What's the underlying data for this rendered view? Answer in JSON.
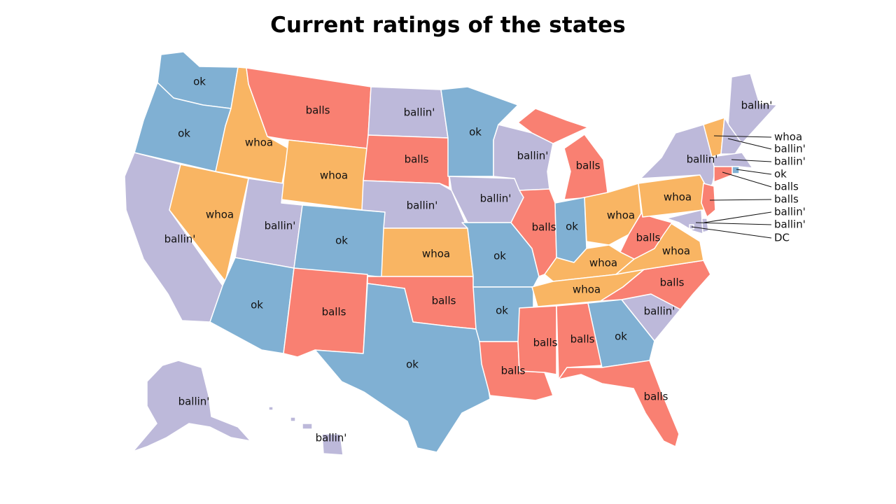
{
  "title": "Current ratings of the states",
  "colors": {
    "ok": "#80B0D3",
    "whoa": "#F9B563",
    "ballin'": "#BDB9DA",
    "balls": "#F98072",
    "DC": "#BDB9DA"
  },
  "states": [
    {
      "id": "WA",
      "rating": "ok"
    },
    {
      "id": "OR",
      "rating": "ok"
    },
    {
      "id": "CA",
      "rating": "ballin'"
    },
    {
      "id": "ID",
      "rating": "whoa"
    },
    {
      "id": "NV",
      "rating": "whoa"
    },
    {
      "id": "MT",
      "rating": "balls"
    },
    {
      "id": "WY",
      "rating": "whoa"
    },
    {
      "id": "UT",
      "rating": "ballin'"
    },
    {
      "id": "CO",
      "rating": "ok"
    },
    {
      "id": "AZ",
      "rating": "ok"
    },
    {
      "id": "NM",
      "rating": "balls"
    },
    {
      "id": "ND",
      "rating": "ballin'"
    },
    {
      "id": "SD",
      "rating": "balls"
    },
    {
      "id": "NE",
      "rating": "ballin'"
    },
    {
      "id": "KS",
      "rating": "whoa"
    },
    {
      "id": "OK",
      "rating": "balls"
    },
    {
      "id": "TX",
      "rating": "ok"
    },
    {
      "id": "MN",
      "rating": "ok"
    },
    {
      "id": "IA",
      "rating": "ballin'"
    },
    {
      "id": "MO",
      "rating": "ok"
    },
    {
      "id": "AR",
      "rating": "ok"
    },
    {
      "id": "LA",
      "rating": "balls"
    },
    {
      "id": "WI",
      "rating": "ballin'"
    },
    {
      "id": "IL",
      "rating": "balls"
    },
    {
      "id": "MI",
      "rating": "balls"
    },
    {
      "id": "IN",
      "rating": "ok"
    },
    {
      "id": "OH",
      "rating": "whoa"
    },
    {
      "id": "KY",
      "rating": "whoa"
    },
    {
      "id": "TN",
      "rating": "whoa"
    },
    {
      "id": "MS",
      "rating": "balls"
    },
    {
      "id": "AL",
      "rating": "balls"
    },
    {
      "id": "GA",
      "rating": "ok"
    },
    {
      "id": "FL",
      "rating": "balls"
    },
    {
      "id": "SC",
      "rating": "ballin'"
    },
    {
      "id": "NC",
      "rating": "balls"
    },
    {
      "id": "VA",
      "rating": "whoa"
    },
    {
      "id": "WV",
      "rating": "balls"
    },
    {
      "id": "PA",
      "rating": "whoa"
    },
    {
      "id": "NY",
      "rating": "ballin'"
    },
    {
      "id": "ME",
      "rating": "ballin'"
    },
    {
      "id": "VT",
      "rating": "whoa"
    },
    {
      "id": "NH",
      "rating": "ballin'"
    },
    {
      "id": "MA",
      "rating": "ballin'"
    },
    {
      "id": "RI",
      "rating": "ok"
    },
    {
      "id": "CT",
      "rating": "balls"
    },
    {
      "id": "NJ",
      "rating": "balls"
    },
    {
      "id": "DE",
      "rating": "ballin'"
    },
    {
      "id": "MD",
      "rating": "ballin'"
    },
    {
      "id": "DC",
      "rating": "DC"
    },
    {
      "id": "AK",
      "rating": "ballin'"
    },
    {
      "id": "HI",
      "rating": "ballin'"
    }
  ],
  "callouts": [
    "whoa",
    "ballin'",
    "ballin'",
    "ok",
    "balls",
    "balls",
    "ballin'",
    "ballin'",
    "DC"
  ]
}
